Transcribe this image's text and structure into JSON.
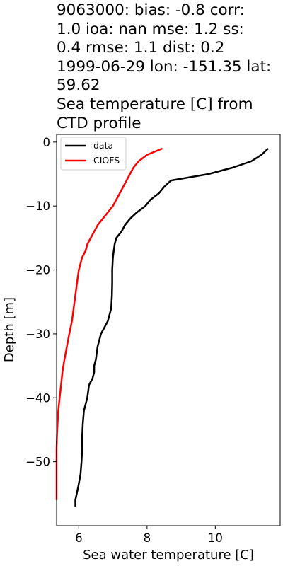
{
  "title_lines": [
    "9063000: bias: -0.8  corr:",
    "1.0  ioa: nan  mse: 1.2  ss:",
    "0.4  rmse: 1.1  dist: 0.2",
    "1999-06-29 lon: -151.35 lat:",
    "59.62",
    "Sea temperature [C] from",
    "CTD profile"
  ],
  "chart_data": {
    "type": "line",
    "title": "9063000: bias: -0.8  corr: 1.0  ioa: nan  mse: 1.2  ss: 0.4  rmse: 1.1  dist: 0.2 1999-06-29 lon: -151.35 lat: 59.62 Sea temperature [C] from CTD profile",
    "xlabel": "Sea water temperature [C]",
    "ylabel": "Depth [m]",
    "xlim": [
      5.35,
      11.9
    ],
    "ylim": [
      -60,
      1.2
    ],
    "xticks": [
      6,
      8,
      10
    ],
    "yticks": [
      0,
      -10,
      -20,
      -30,
      -40,
      -50
    ],
    "grid": false,
    "legend": "top-left",
    "series": [
      {
        "name": "data",
        "color": "#000000",
        "points": [
          [
            11.55,
            -1
          ],
          [
            11.35,
            -2
          ],
          [
            11.05,
            -3
          ],
          [
            10.5,
            -4
          ],
          [
            9.8,
            -5
          ],
          [
            8.7,
            -6
          ],
          [
            8.5,
            -7
          ],
          [
            8.35,
            -8
          ],
          [
            8.1,
            -9
          ],
          [
            7.95,
            -10
          ],
          [
            7.7,
            -11
          ],
          [
            7.5,
            -12
          ],
          [
            7.35,
            -13
          ],
          [
            7.25,
            -14
          ],
          [
            7.1,
            -15
          ],
          [
            7.05,
            -16
          ],
          [
            7.0,
            -18
          ],
          [
            6.98,
            -20
          ],
          [
            6.98,
            -22
          ],
          [
            6.97,
            -24
          ],
          [
            6.95,
            -26
          ],
          [
            6.85,
            -28
          ],
          [
            6.65,
            -30
          ],
          [
            6.55,
            -32
          ],
          [
            6.5,
            -34
          ],
          [
            6.45,
            -35
          ],
          [
            6.45,
            -36
          ],
          [
            6.4,
            -37
          ],
          [
            6.3,
            -38
          ],
          [
            6.25,
            -40
          ],
          [
            6.15,
            -42
          ],
          [
            6.12,
            -44
          ],
          [
            6.1,
            -46
          ],
          [
            6.1,
            -48
          ],
          [
            6.08,
            -50
          ],
          [
            6.05,
            -52
          ],
          [
            5.98,
            -54
          ],
          [
            5.9,
            -56
          ],
          [
            5.9,
            -57
          ]
        ]
      },
      {
        "name": "CIOFS",
        "color": "#ff0000",
        "points": [
          [
            8.45,
            -1
          ],
          [
            8.0,
            -2
          ],
          [
            7.75,
            -3
          ],
          [
            7.6,
            -4
          ],
          [
            7.5,
            -5
          ],
          [
            7.4,
            -6
          ],
          [
            7.3,
            -7
          ],
          [
            7.2,
            -8
          ],
          [
            7.1,
            -9
          ],
          [
            7.0,
            -10
          ],
          [
            6.85,
            -11
          ],
          [
            6.7,
            -12
          ],
          [
            6.55,
            -13
          ],
          [
            6.45,
            -14
          ],
          [
            6.35,
            -15
          ],
          [
            6.25,
            -16
          ],
          [
            6.2,
            -17
          ],
          [
            6.1,
            -18
          ],
          [
            6.05,
            -19
          ],
          [
            6.0,
            -20
          ],
          [
            5.95,
            -22
          ],
          [
            5.9,
            -24
          ],
          [
            5.85,
            -26
          ],
          [
            5.8,
            -28
          ],
          [
            5.72,
            -30
          ],
          [
            5.65,
            -32
          ],
          [
            5.58,
            -34
          ],
          [
            5.52,
            -36
          ],
          [
            5.48,
            -38
          ],
          [
            5.44,
            -40
          ],
          [
            5.4,
            -42
          ],
          [
            5.38,
            -44
          ],
          [
            5.36,
            -46
          ],
          [
            5.35,
            -48
          ],
          [
            5.35,
            -50
          ],
          [
            5.35,
            -52
          ],
          [
            5.35,
            -54
          ],
          [
            5.35,
            -56
          ]
        ]
      }
    ]
  }
}
